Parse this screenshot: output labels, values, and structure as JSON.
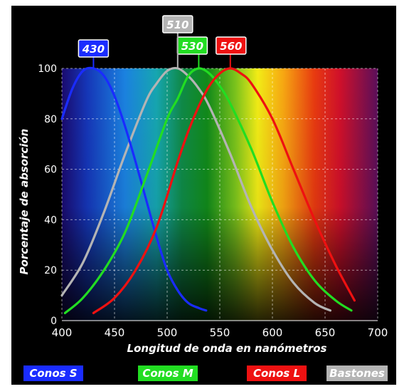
{
  "chart_data": {
    "type": "line",
    "xlabel": "Longitud de onda en nanómetros",
    "ylabel": "Porcentaje de absorción",
    "xlim": [
      400,
      700
    ],
    "ylim": [
      0,
      100
    ],
    "xticks": [
      400,
      450,
      500,
      550,
      600,
      650,
      700
    ],
    "yticks": [
      0,
      20,
      40,
      60,
      80,
      100
    ],
    "grid": true,
    "background": "visible color spectrum (violet → blue → cyan → green → yellow → orange → red → magenta)",
    "series": [
      {
        "name": "Conos S",
        "color": "#1a2cff",
        "peak": 430,
        "x": [
          400,
          410,
          420,
          430,
          440,
          450,
          460,
          470,
          480,
          490,
          500,
          510,
          520,
          530,
          537
        ],
        "y": [
          80,
          92,
          99,
          100,
          97,
          89,
          77,
          63,
          48,
          33,
          20,
          12,
          7,
          5,
          4
        ]
      },
      {
        "name": "Conos M",
        "color": "#22dd22",
        "peak": 530,
        "x": [
          403,
          420,
          440,
          460,
          480,
          500,
          510,
          520,
          530,
          540,
          550,
          560,
          580,
          600,
          620,
          640,
          660,
          675
        ],
        "y": [
          3,
          9,
          20,
          35,
          57,
          80,
          88,
          97,
          100,
          98,
          93,
          86,
          68,
          47,
          29,
          16,
          8,
          4
        ]
      },
      {
        "name": "Conos L",
        "color": "#ee1111",
        "peak": 560,
        "x": [
          430,
          450,
          470,
          490,
          510,
          520,
          530,
          540,
          550,
          560,
          570,
          580,
          600,
          620,
          640,
          660,
          678
        ],
        "y": [
          3,
          9,
          20,
          37,
          63,
          75,
          85,
          93,
          98,
          100,
          98,
          94,
          80,
          60,
          40,
          22,
          8
        ]
      },
      {
        "name": "Bastones",
        "color": "#b4b4b4",
        "peak": 510,
        "x": [
          400,
          420,
          440,
          460,
          480,
          490,
          500,
          510,
          520,
          530,
          540,
          560,
          580,
          600,
          620,
          640,
          655
        ],
        "y": [
          10,
          23,
          43,
          66,
          87,
          94,
          99,
          100,
          97,
          92,
          85,
          66,
          45,
          28,
          15,
          7,
          4
        ]
      }
    ],
    "peak_labels": [
      "430",
      "510",
      "530",
      "560"
    ]
  }
}
